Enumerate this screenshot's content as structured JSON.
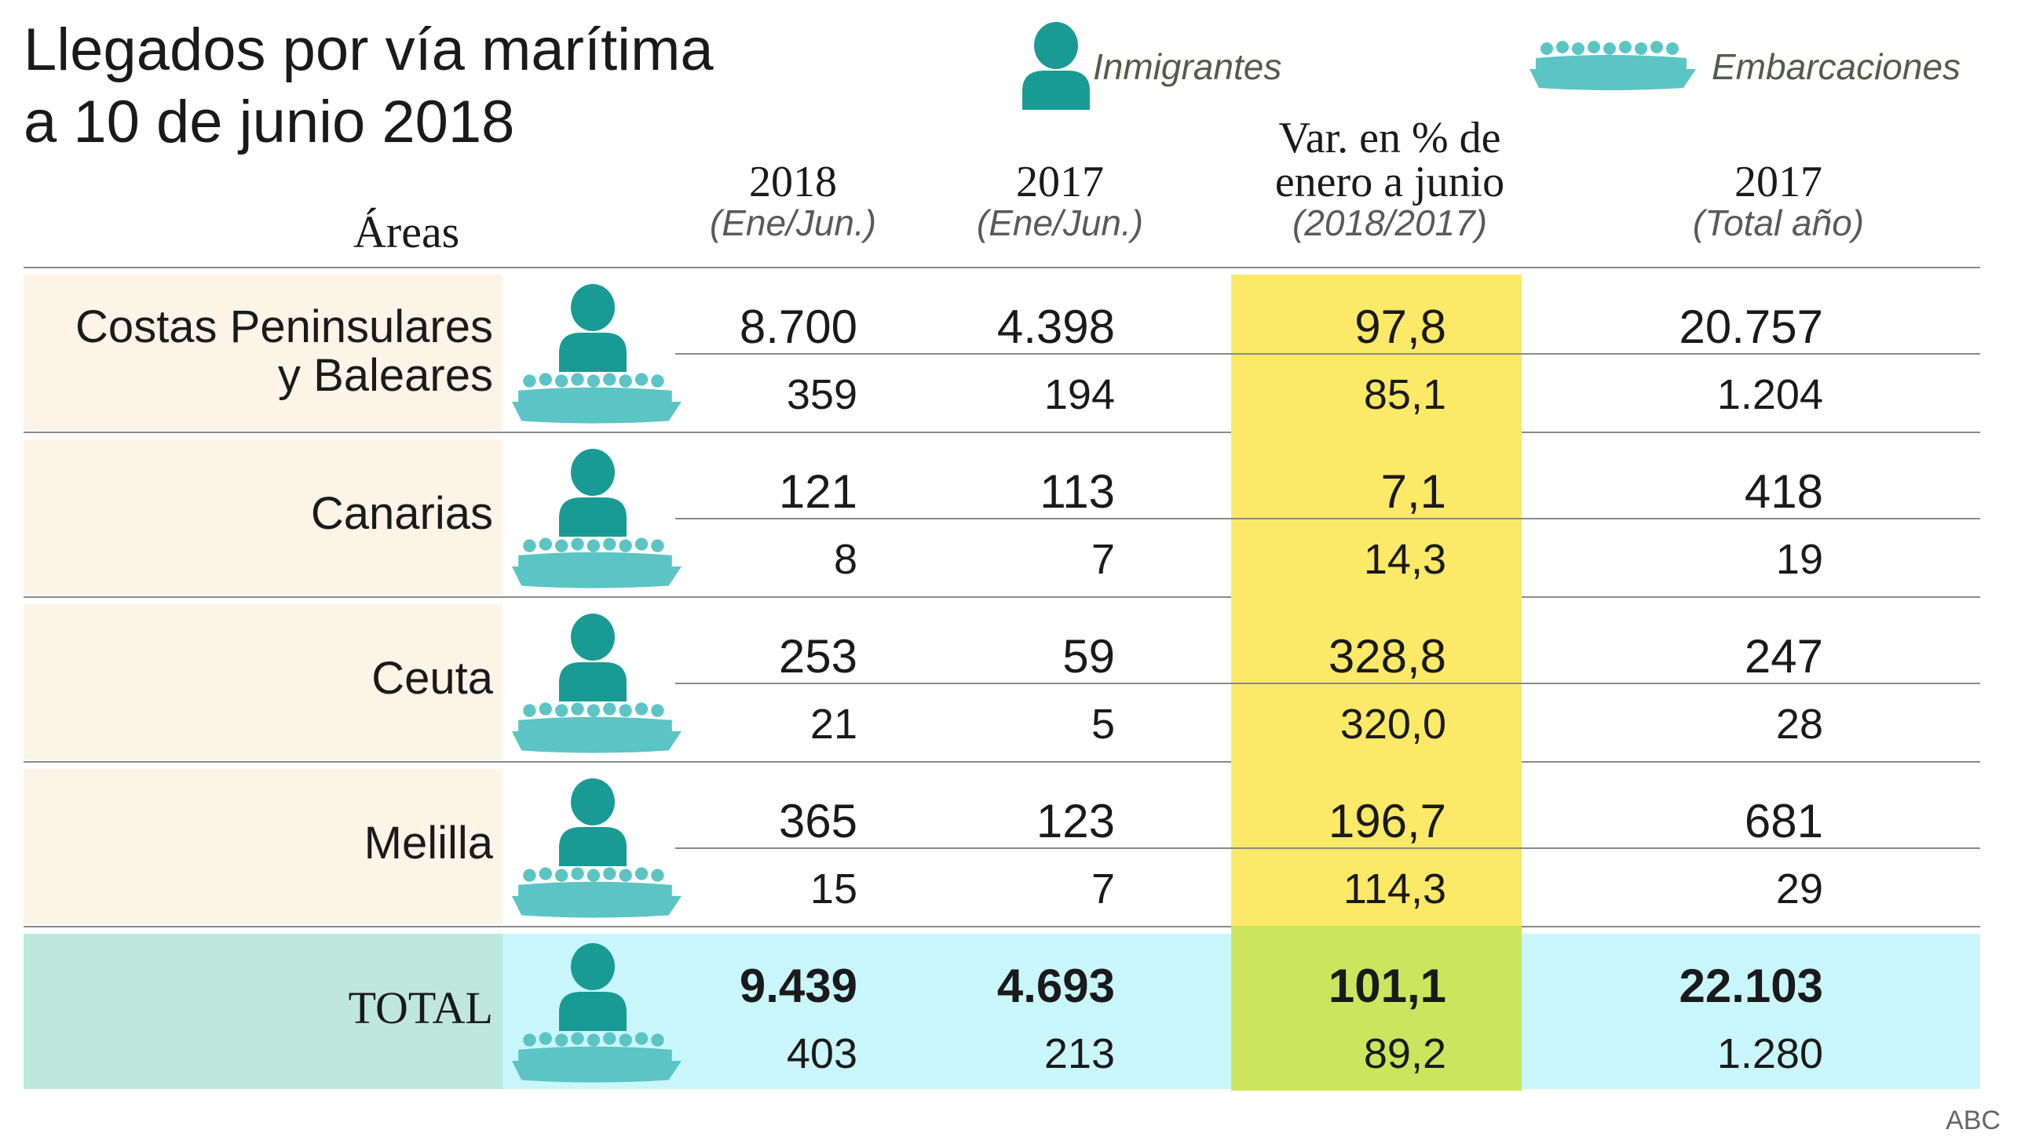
{
  "title_line1": "Llegados por vía marítima",
  "title_line2": "a 10 de junio 2018",
  "legend": {
    "immigrants_label": "Inmigrantes",
    "boats_label": "Embarcaciones",
    "immigrants_icon": "person-icon",
    "boats_icon": "boat-icon",
    "immigrants_color": "#1a9a94",
    "boats_color": "#5cc4c4"
  },
  "headers": {
    "areas": "Áreas",
    "col1_main": "2018",
    "col1_sub": "(Ene/Jun.)",
    "col2_main": "2017",
    "col2_sub": "(Ene/Jun.)",
    "col3_line1": "Var. en % de",
    "col3_line2": "enero a junio",
    "col3_sub": "(2018/2017)",
    "col4_main": "2017",
    "col4_sub": "(Total año)"
  },
  "colors": {
    "area_bg": "#fdf3e7",
    "highlight": "#fbe967",
    "total_bg": "#c9f6fb",
    "total_label_bg": "#bfe8dc",
    "total_highlight": "#cde55e"
  },
  "chart_data": {
    "type": "table",
    "columns": [
      "Áreas",
      "2018 (Ene/Jun.)",
      "2017 (Ene/Jun.)",
      "Var. en % de enero a junio (2018/2017)",
      "2017 (Total año)"
    ],
    "rows": [
      {
        "area": "Costas Peninsulares y Baleares",
        "area_line1": "Costas Peninsulares",
        "area_line2": "y Baleares",
        "inmigrantes": [
          "8.700",
          "4.398",
          "97,8",
          "20.757"
        ],
        "embarcaciones": [
          "359",
          "194",
          "85,1",
          "1.204"
        ]
      },
      {
        "area": "Canarias",
        "inmigrantes": [
          "121",
          "113",
          "7,1",
          "418"
        ],
        "embarcaciones": [
          "8",
          "7",
          "14,3",
          "19"
        ]
      },
      {
        "area": "Ceuta",
        "inmigrantes": [
          "253",
          "59",
          "328,8",
          "247"
        ],
        "embarcaciones": [
          "21",
          "5",
          "320,0",
          "28"
        ]
      },
      {
        "area": "Melilla",
        "inmigrantes": [
          "365",
          "123",
          "196,7",
          "681"
        ],
        "embarcaciones": [
          "15",
          "7",
          "114,3",
          "29"
        ]
      },
      {
        "area": "TOTAL",
        "inmigrantes": [
          "9.439",
          "4.693",
          "101,1",
          "22.103"
        ],
        "embarcaciones": [
          "403",
          "213",
          "89,2",
          "1.280"
        ]
      }
    ]
  },
  "source": "ABC"
}
